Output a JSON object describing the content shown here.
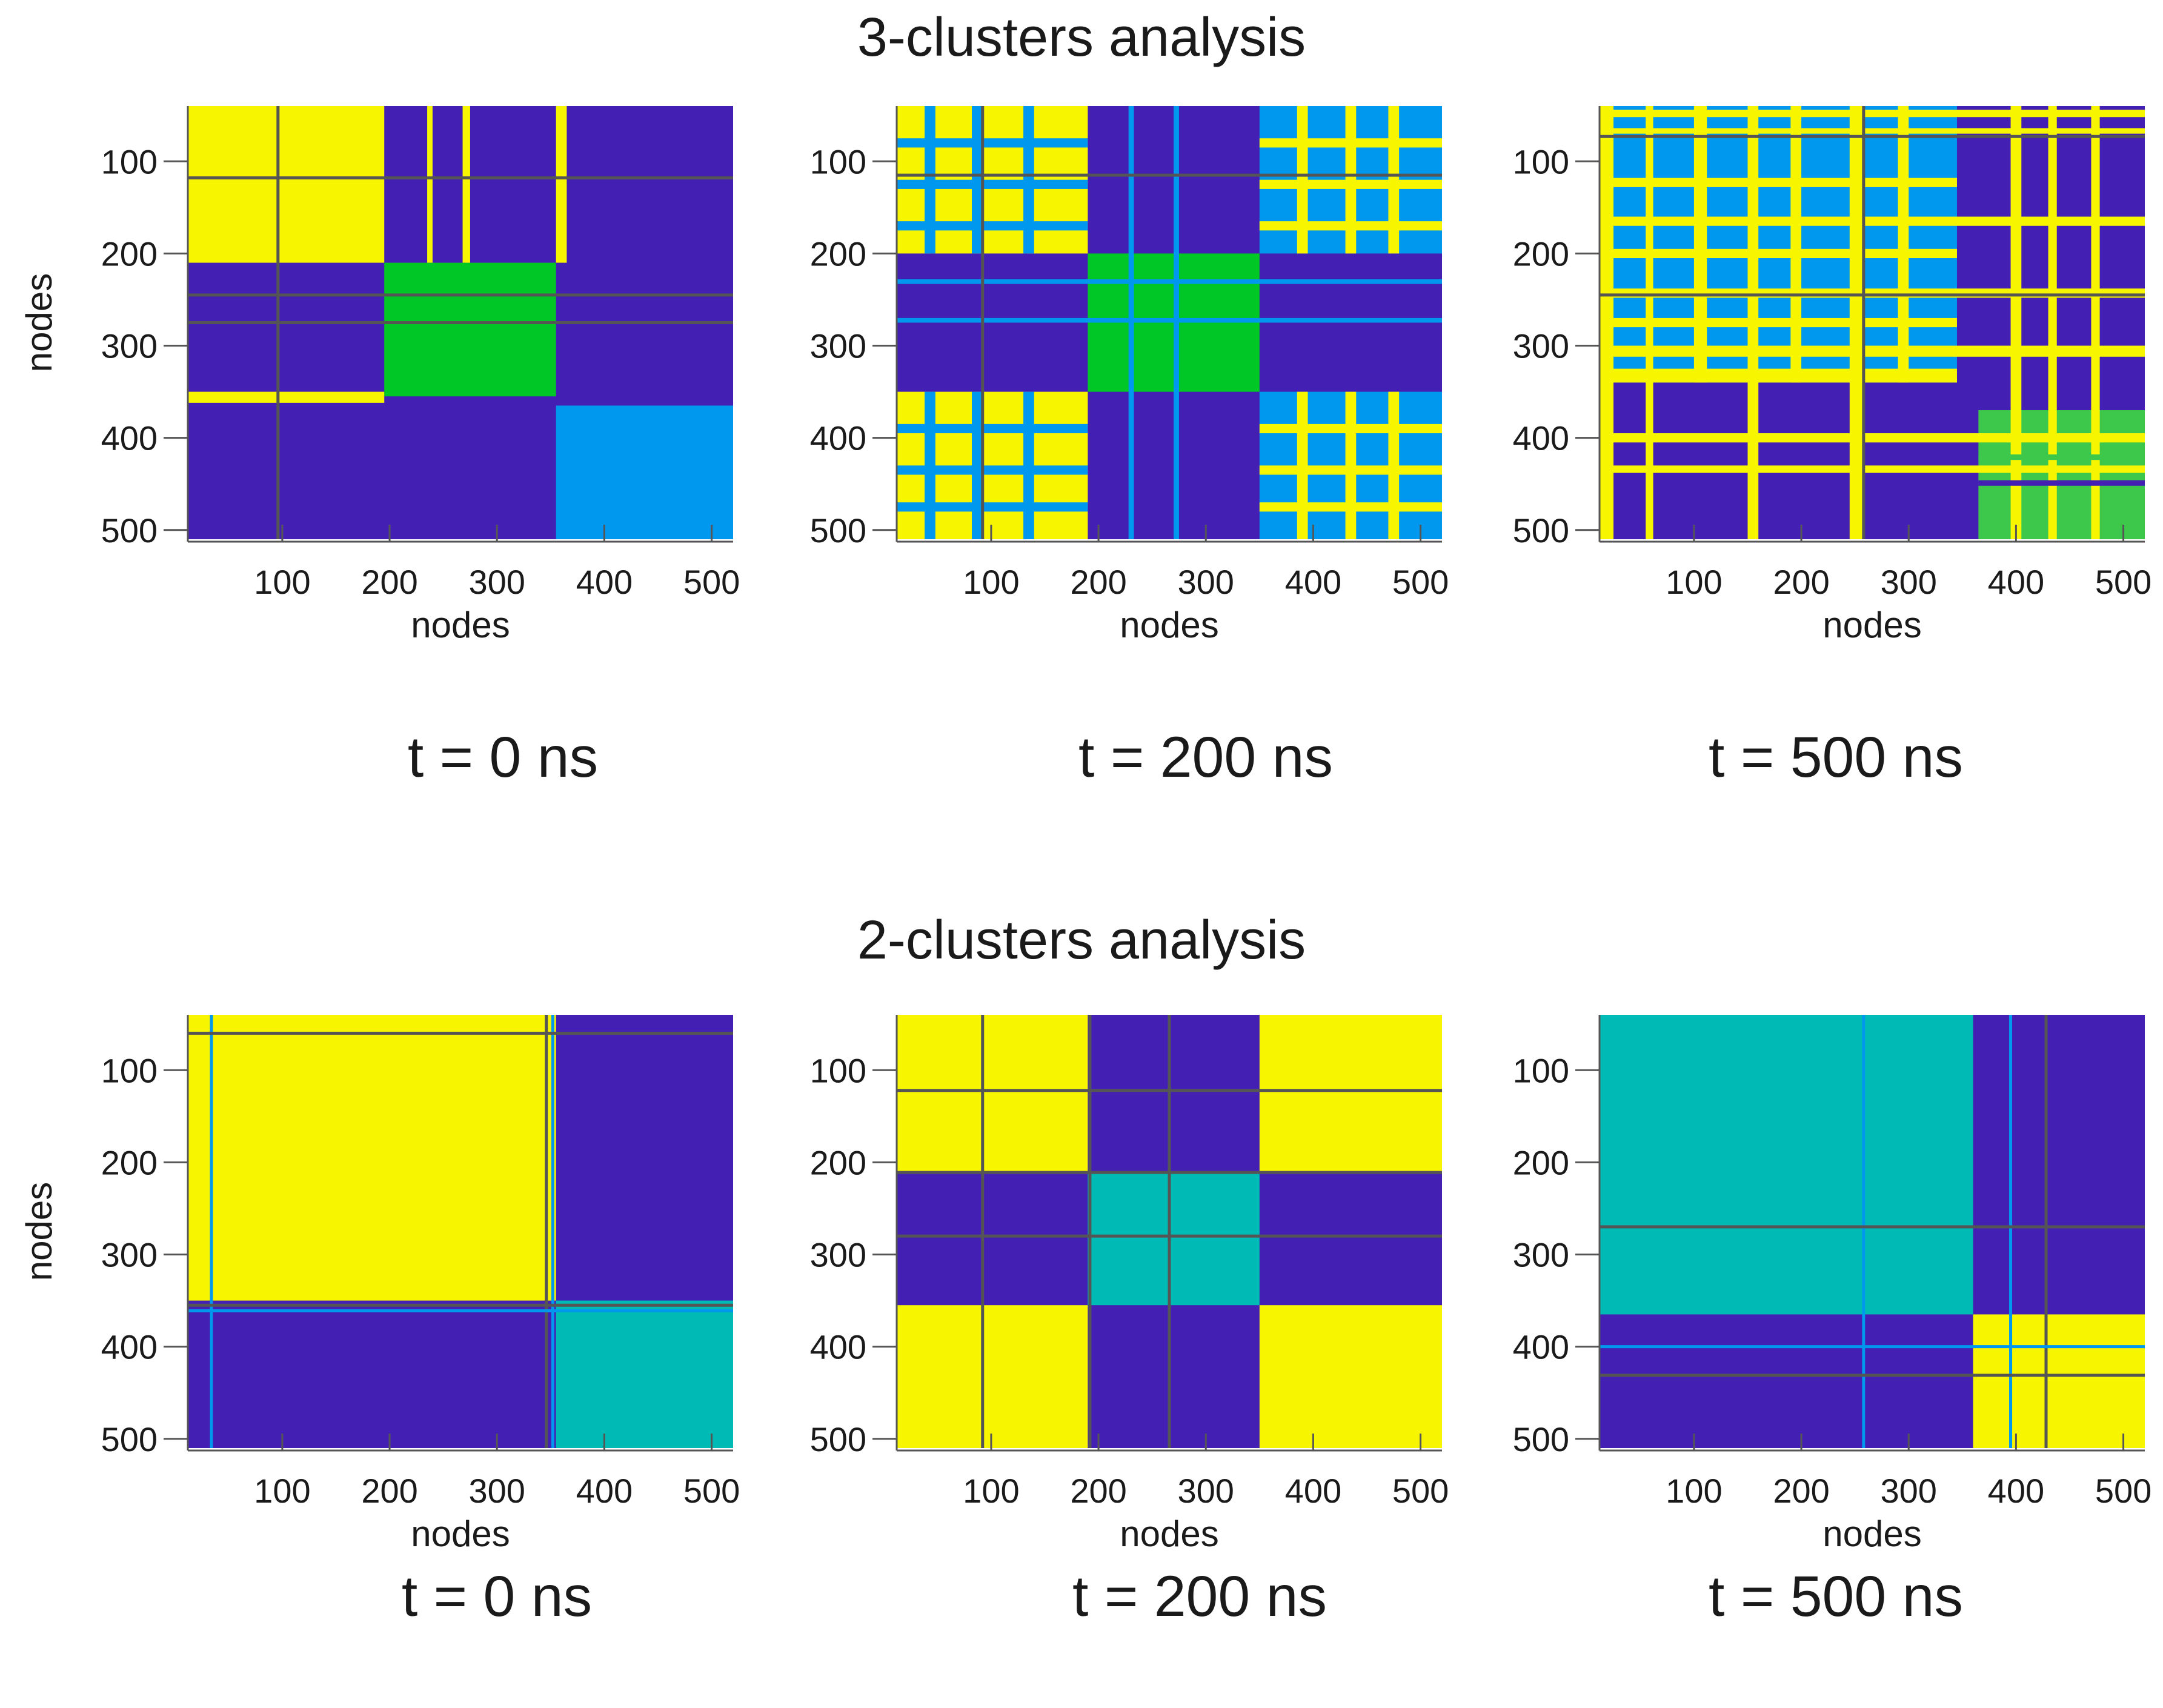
{
  "colors": {
    "purple": "#4320b3",
    "yellow": "#f8f500",
    "green": "#00c725",
    "green_light": "#3dc84c",
    "blue": "#0098ee",
    "teal": "#00bab5",
    "axis": "#555555"
  },
  "rows": [
    {
      "title": "3-clusters analysis"
    },
    {
      "title": "2-clusters analysis"
    }
  ],
  "chart_data": [
    {
      "type": "heatmap",
      "title": "3-clusters analysis",
      "caption": "t = 0 ns",
      "xlabel": "nodes",
      "ylabel": "nodes",
      "show_ylabel": true,
      "xlim": [
        12,
        520
      ],
      "ylim": [
        40,
        510
      ],
      "xticks": [
        100,
        200,
        300,
        400,
        500
      ],
      "yticks": [
        100,
        200,
        300,
        400,
        500
      ],
      "background": "purple",
      "blocks": [
        {
          "x": [
            12,
            195
          ],
          "y": [
            40,
            210
          ],
          "c": "yellow"
        },
        {
          "x": [
            195,
            355
          ],
          "y": [
            210,
            355
          ],
          "c": "green"
        },
        {
          "x": [
            355,
            520
          ],
          "y": [
            365,
            510
          ],
          "c": "blue"
        },
        {
          "x": [
            12,
            195
          ],
          "y": [
            350,
            362
          ],
          "c": "yellow"
        },
        {
          "x": [
            355,
            365
          ],
          "y": [
            40,
            210
          ],
          "c": "yellow"
        },
        {
          "x": [
            235,
            240
          ],
          "y": [
            40,
            210
          ],
          "c": "yellow"
        },
        {
          "x": [
            268,
            275
          ],
          "y": [
            40,
            210
          ],
          "c": "yellow"
        }
      ],
      "lines": [
        {
          "o": "v",
          "p": 96,
          "c": "axis"
        },
        {
          "o": "h",
          "p": 118,
          "c": "axis"
        },
        {
          "o": "h",
          "p": 245,
          "c": "axis"
        },
        {
          "o": "h",
          "p": 275,
          "c": "axis"
        }
      ]
    },
    {
      "type": "heatmap",
      "title": "3-clusters analysis",
      "caption": "t = 200 ns",
      "xlabel": "nodes",
      "ylabel": "nodes",
      "show_ylabel": false,
      "xlim": [
        12,
        520
      ],
      "ylim": [
        40,
        510
      ],
      "xticks": [
        100,
        200,
        300,
        400,
        500
      ],
      "yticks": [
        100,
        200,
        300,
        400,
        500
      ],
      "background": "purple",
      "blocks": [
        {
          "x": [
            12,
            190
          ],
          "y": [
            40,
            200
          ],
          "c": "yellow"
        },
        {
          "x": [
            12,
            190
          ],
          "y": [
            350,
            510
          ],
          "c": "yellow"
        },
        {
          "x": [
            190,
            350
          ],
          "y": [
            200,
            350
          ],
          "c": "green"
        },
        {
          "x": [
            350,
            520
          ],
          "y": [
            40,
            200
          ],
          "c": "blue"
        },
        {
          "x": [
            350,
            520
          ],
          "y": [
            350,
            510
          ],
          "c": "blue"
        }
      ],
      "vstripes": [
        {
          "x": [
            38,
            48
          ],
          "y": [
            40,
            200
          ],
          "c": "blue"
        },
        {
          "x": [
            82,
            92
          ],
          "y": [
            40,
            200
          ],
          "c": "blue"
        },
        {
          "x": [
            130,
            140
          ],
          "y": [
            40,
            200
          ],
          "c": "blue"
        },
        {
          "x": [
            38,
            48
          ],
          "y": [
            350,
            510
          ],
          "c": "blue"
        },
        {
          "x": [
            82,
            92
          ],
          "y": [
            350,
            510
          ],
          "c": "blue"
        },
        {
          "x": [
            130,
            140
          ],
          "y": [
            350,
            510
          ],
          "c": "blue"
        },
        {
          "x": [
            385,
            395
          ],
          "y": [
            40,
            200
          ],
          "c": "yellow"
        },
        {
          "x": [
            430,
            440
          ],
          "y": [
            40,
            200
          ],
          "c": "yellow"
        },
        {
          "x": [
            470,
            480
          ],
          "y": [
            40,
            200
          ],
          "c": "yellow"
        },
        {
          "x": [
            385,
            395
          ],
          "y": [
            350,
            510
          ],
          "c": "yellow"
        },
        {
          "x": [
            430,
            440
          ],
          "y": [
            350,
            510
          ],
          "c": "yellow"
        },
        {
          "x": [
            470,
            480
          ],
          "y": [
            350,
            510
          ],
          "c": "yellow"
        },
        {
          "x": [
            228,
            233
          ],
          "y": [
            40,
            510
          ],
          "c": "blue"
        },
        {
          "x": [
            270,
            275
          ],
          "y": [
            40,
            510
          ],
          "c": "blue"
        }
      ],
      "hstripes": [
        {
          "x": [
            12,
            190
          ],
          "y": [
            75,
            85
          ],
          "c": "blue"
        },
        {
          "x": [
            12,
            190
          ],
          "y": [
            120,
            130
          ],
          "c": "blue"
        },
        {
          "x": [
            12,
            190
          ],
          "y": [
            165,
            175
          ],
          "c": "blue"
        },
        {
          "x": [
            12,
            190
          ],
          "y": [
            385,
            395
          ],
          "c": "blue"
        },
        {
          "x": [
            12,
            190
          ],
          "y": [
            430,
            440
          ],
          "c": "blue"
        },
        {
          "x": [
            12,
            190
          ],
          "y": [
            470,
            480
          ],
          "c": "blue"
        },
        {
          "x": [
            350,
            520
          ],
          "y": [
            75,
            85
          ],
          "c": "yellow"
        },
        {
          "x": [
            350,
            520
          ],
          "y": [
            120,
            130
          ],
          "c": "yellow"
        },
        {
          "x": [
            350,
            520
          ],
          "y": [
            165,
            175
          ],
          "c": "yellow"
        },
        {
          "x": [
            350,
            520
          ],
          "y": [
            385,
            395
          ],
          "c": "yellow"
        },
        {
          "x": [
            350,
            520
          ],
          "y": [
            430,
            440
          ],
          "c": "yellow"
        },
        {
          "x": [
            350,
            520
          ],
          "y": [
            470,
            480
          ],
          "c": "yellow"
        },
        {
          "x": [
            12,
            520
          ],
          "y": [
            228,
            233
          ],
          "c": "blue"
        },
        {
          "x": [
            12,
            520
          ],
          "y": [
            270,
            275
          ],
          "c": "blue"
        }
      ],
      "lines": [
        {
          "o": "v",
          "p": 92,
          "c": "axis"
        },
        {
          "o": "h",
          "p": 115,
          "c": "axis"
        }
      ]
    },
    {
      "type": "heatmap",
      "title": "3-clusters analysis",
      "caption": "t = 500 ns",
      "xlabel": "nodes",
      "ylabel": "nodes",
      "show_ylabel": false,
      "xlim": [
        12,
        520
      ],
      "ylim": [
        40,
        510
      ],
      "xticks": [
        100,
        200,
        300,
        400,
        500
      ],
      "yticks": [
        100,
        200,
        300,
        400,
        500
      ],
      "background": "purple",
      "blocks": [
        {
          "x": [
            12,
            345
          ],
          "y": [
            40,
            340
          ],
          "c": "blue"
        },
        {
          "x": [
            365,
            520
          ],
          "y": [
            370,
            510
          ],
          "c": "green_light"
        }
      ],
      "vstripes": [
        {
          "x": [
            12,
            25
          ],
          "y": [
            40,
            510
          ],
          "c": "yellow"
        },
        {
          "x": [
            55,
            62
          ],
          "y": [
            40,
            510
          ],
          "c": "yellow"
        },
        {
          "x": [
            100,
            112
          ],
          "y": [
            40,
            340
          ],
          "c": "yellow"
        },
        {
          "x": [
            150,
            160
          ],
          "y": [
            40,
            510
          ],
          "c": "yellow"
        },
        {
          "x": [
            190,
            200
          ],
          "y": [
            40,
            340
          ],
          "c": "yellow"
        },
        {
          "x": [
            245,
            258
          ],
          "y": [
            40,
            510
          ],
          "c": "yellow"
        },
        {
          "x": [
            290,
            300
          ],
          "y": [
            40,
            340
          ],
          "c": "yellow"
        },
        {
          "x": [
            395,
            405
          ],
          "y": [
            40,
            510
          ],
          "c": "yellow"
        },
        {
          "x": [
            430,
            438
          ],
          "y": [
            40,
            510
          ],
          "c": "yellow"
        },
        {
          "x": [
            470,
            478
          ],
          "y": [
            40,
            510
          ],
          "c": "yellow"
        }
      ],
      "hstripes": [
        {
          "x": [
            12,
            520
          ],
          "y": [
            44,
            52
          ],
          "c": "yellow"
        },
        {
          "x": [
            12,
            520
          ],
          "y": [
            64,
            70
          ],
          "c": "yellow"
        },
        {
          "x": [
            12,
            345
          ],
          "y": [
            118,
            128
          ],
          "c": "yellow"
        },
        {
          "x": [
            12,
            520
          ],
          "y": [
            160,
            170
          ],
          "c": "yellow"
        },
        {
          "x": [
            12,
            345
          ],
          "y": [
            195,
            205
          ],
          "c": "yellow"
        },
        {
          "x": [
            12,
            520
          ],
          "y": [
            238,
            248
          ],
          "c": "yellow"
        },
        {
          "x": [
            12,
            345
          ],
          "y": [
            270,
            280
          ],
          "c": "yellow"
        },
        {
          "x": [
            12,
            520
          ],
          "y": [
            300,
            312
          ],
          "c": "yellow"
        },
        {
          "x": [
            12,
            345
          ],
          "y": [
            325,
            340
          ],
          "c": "yellow"
        },
        {
          "x": [
            12,
            520
          ],
          "y": [
            395,
            405
          ],
          "c": "yellow"
        },
        {
          "x": [
            12,
            520
          ],
          "y": [
            430,
            438
          ],
          "c": "yellow"
        },
        {
          "x": [
            365,
            520
          ],
          "y": [
            418,
            424
          ],
          "c": "green_light"
        },
        {
          "x": [
            365,
            520
          ],
          "y": [
            446,
            452
          ],
          "c": "purple"
        }
      ],
      "lines": [
        {
          "o": "v",
          "p": 258,
          "c": "axis"
        },
        {
          "o": "h",
          "p": 73,
          "c": "axis"
        },
        {
          "o": "h",
          "p": 245,
          "c": "axis"
        }
      ]
    },
    {
      "type": "heatmap",
      "title": "2-clusters analysis",
      "caption": "t = 0 ns",
      "xlabel": "nodes",
      "ylabel": "nodes",
      "show_ylabel": true,
      "xlim": [
        12,
        520
      ],
      "ylim": [
        40,
        510
      ],
      "xticks": [
        100,
        200,
        300,
        400,
        500
      ],
      "yticks": [
        100,
        200,
        300,
        400,
        500
      ],
      "background": "purple",
      "blocks": [
        {
          "x": [
            12,
            355
          ],
          "y": [
            40,
            350
          ],
          "c": "yellow"
        },
        {
          "x": [
            355,
            520
          ],
          "y": [
            350,
            510
          ],
          "c": "teal"
        }
      ],
      "lines": [
        {
          "o": "v",
          "p": 34,
          "c": "blue"
        },
        {
          "o": "v",
          "p": 346,
          "c": "axis"
        },
        {
          "o": "v",
          "p": 352,
          "c": "blue"
        },
        {
          "o": "h",
          "p": 60,
          "c": "axis"
        },
        {
          "o": "h",
          "p": 355,
          "c": "axis"
        },
        {
          "o": "h",
          "p": 361,
          "c": "blue"
        }
      ]
    },
    {
      "type": "heatmap",
      "title": "2-clusters analysis",
      "caption": "t = 200 ns",
      "xlabel": "nodes",
      "ylabel": "nodes",
      "show_ylabel": false,
      "xlim": [
        12,
        520
      ],
      "ylim": [
        40,
        510
      ],
      "xticks": [
        100,
        200,
        300,
        400,
        500
      ],
      "yticks": [
        100,
        200,
        300,
        400,
        500
      ],
      "background": "purple",
      "blocks": [
        {
          "x": [
            12,
            190
          ],
          "y": [
            40,
            210
          ],
          "c": "yellow"
        },
        {
          "x": [
            350,
            520
          ],
          "y": [
            40,
            210
          ],
          "c": "yellow"
        },
        {
          "x": [
            12,
            190
          ],
          "y": [
            355,
            510
          ],
          "c": "yellow"
        },
        {
          "x": [
            350,
            520
          ],
          "y": [
            355,
            510
          ],
          "c": "yellow"
        },
        {
          "x": [
            190,
            350
          ],
          "y": [
            210,
            355
          ],
          "c": "teal"
        }
      ],
      "lines": [
        {
          "o": "v",
          "p": 92,
          "c": "axis"
        },
        {
          "o": "v",
          "p": 192,
          "c": "axis"
        },
        {
          "o": "v",
          "p": 266,
          "c": "axis"
        },
        {
          "o": "h",
          "p": 122,
          "c": "axis"
        },
        {
          "o": "h",
          "p": 211,
          "c": "axis"
        },
        {
          "o": "h",
          "p": 280,
          "c": "axis"
        }
      ]
    },
    {
      "type": "heatmap",
      "title": "2-clusters analysis",
      "caption": "t = 500 ns",
      "xlabel": "nodes",
      "ylabel": "nodes",
      "show_ylabel": false,
      "xlim": [
        12,
        520
      ],
      "ylim": [
        40,
        510
      ],
      "xticks": [
        100,
        200,
        300,
        400,
        500
      ],
      "yticks": [
        100,
        200,
        300,
        400,
        500
      ],
      "background": "purple",
      "blocks": [
        {
          "x": [
            12,
            360
          ],
          "y": [
            40,
            365
          ],
          "c": "teal"
        },
        {
          "x": [
            360,
            520
          ],
          "y": [
            365,
            510
          ],
          "c": "yellow"
        }
      ],
      "lines": [
        {
          "o": "v",
          "p": 258,
          "c": "blue"
        },
        {
          "o": "v",
          "p": 395,
          "c": "blue"
        },
        {
          "o": "v",
          "p": 428,
          "c": "axis"
        },
        {
          "o": "h",
          "p": 270,
          "c": "axis"
        },
        {
          "o": "h",
          "p": 400,
          "c": "blue"
        },
        {
          "o": "h",
          "p": 431,
          "c": "axis"
        }
      ]
    }
  ]
}
